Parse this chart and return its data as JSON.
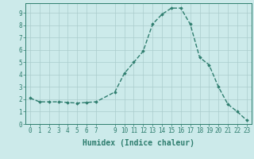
{
  "x": [
    0,
    1,
    2,
    3,
    4,
    5,
    6,
    7,
    9,
    10,
    11,
    12,
    13,
    14,
    15,
    16,
    17,
    18,
    19,
    20,
    21,
    22,
    23
  ],
  "y": [
    2.1,
    1.8,
    1.8,
    1.8,
    1.75,
    1.7,
    1.75,
    1.8,
    2.6,
    4.1,
    5.0,
    5.9,
    8.1,
    8.9,
    9.4,
    9.4,
    8.1,
    5.4,
    4.8,
    3.0,
    1.6,
    1.0,
    0.3
  ],
  "line_color": "#2e7d6e",
  "marker": "D",
  "marker_size": 1.8,
  "bg_color": "#cceaea",
  "grid_color": "#aacccc",
  "xlabel": "Humidex (Indice chaleur)",
  "xlim": [
    -0.5,
    23.5
  ],
  "ylim": [
    0,
    9.8
  ],
  "yticks": [
    0,
    1,
    2,
    3,
    4,
    5,
    6,
    7,
    8,
    9
  ],
  "xticks": [
    0,
    1,
    2,
    3,
    4,
    5,
    6,
    7,
    9,
    10,
    11,
    12,
    13,
    14,
    15,
    16,
    17,
    18,
    19,
    20,
    21,
    22,
    23
  ],
  "tick_label_fontsize": 5.5,
  "xlabel_fontsize": 7.0,
  "line_width": 1.0
}
